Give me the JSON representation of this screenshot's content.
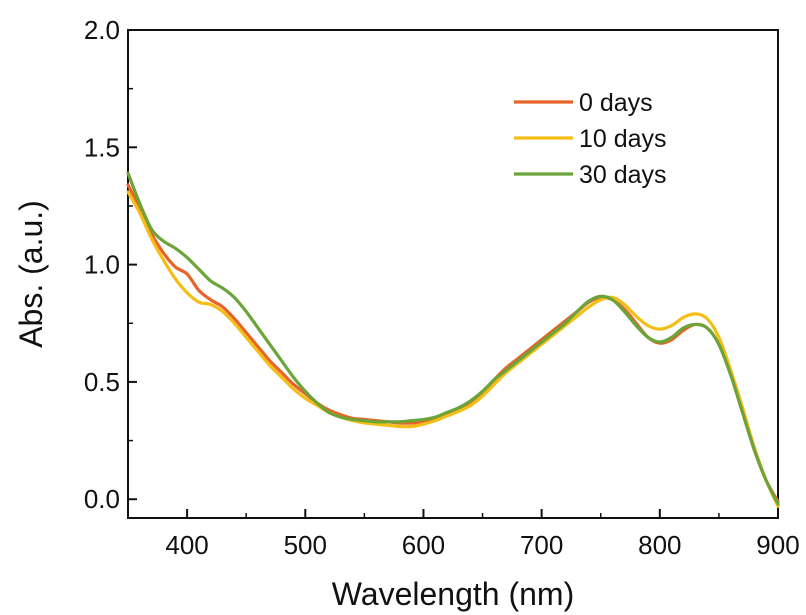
{
  "chart_data": {
    "type": "line",
    "title": "",
    "xlabel": "Wavelength (nm)",
    "ylabel": "Abs. (a.u.)",
    "xlim": [
      350,
      900
    ],
    "ylim": [
      -0.08,
      2.0
    ],
    "xticks": [
      400,
      500,
      600,
      700,
      800,
      900
    ],
    "xtick_labels": [
      "400",
      "500",
      "600",
      "700",
      "800",
      "900"
    ],
    "yticks": [
      0.0,
      0.5,
      1.0,
      1.5,
      2.0
    ],
    "ytick_labels": [
      "0.0",
      "0.5",
      "1.0",
      "1.5",
      "2.0"
    ],
    "grid": false,
    "legend_position": "top-right",
    "series": [
      {
        "name": "0 days",
        "color": "#E8632A",
        "points": [
          [
            350,
            1.34
          ],
          [
            360,
            1.24
          ],
          [
            370,
            1.13
          ],
          [
            380,
            1.05
          ],
          [
            390,
            0.99
          ],
          [
            400,
            0.96
          ],
          [
            410,
            0.89
          ],
          [
            420,
            0.85
          ],
          [
            430,
            0.82
          ],
          [
            440,
            0.77
          ],
          [
            450,
            0.71
          ],
          [
            460,
            0.65
          ],
          [
            470,
            0.59
          ],
          [
            480,
            0.54
          ],
          [
            490,
            0.49
          ],
          [
            500,
            0.45
          ],
          [
            510,
            0.41
          ],
          [
            520,
            0.38
          ],
          [
            530,
            0.36
          ],
          [
            540,
            0.345
          ],
          [
            550,
            0.34
          ],
          [
            560,
            0.335
          ],
          [
            570,
            0.33
          ],
          [
            580,
            0.325
          ],
          [
            590,
            0.325
          ],
          [
            600,
            0.33
          ],
          [
            610,
            0.345
          ],
          [
            620,
            0.365
          ],
          [
            630,
            0.385
          ],
          [
            640,
            0.41
          ],
          [
            650,
            0.45
          ],
          [
            660,
            0.51
          ],
          [
            670,
            0.56
          ],
          [
            680,
            0.6
          ],
          [
            690,
            0.64
          ],
          [
            700,
            0.68
          ],
          [
            710,
            0.72
          ],
          [
            720,
            0.76
          ],
          [
            730,
            0.8
          ],
          [
            740,
            0.84
          ],
          [
            750,
            0.86
          ],
          [
            760,
            0.85
          ],
          [
            770,
            0.81
          ],
          [
            780,
            0.75
          ],
          [
            790,
            0.69
          ],
          [
            800,
            0.665
          ],
          [
            810,
            0.68
          ],
          [
            820,
            0.72
          ],
          [
            830,
            0.745
          ],
          [
            840,
            0.73
          ],
          [
            850,
            0.66
          ],
          [
            860,
            0.53
          ],
          [
            870,
            0.37
          ],
          [
            880,
            0.21
          ],
          [
            890,
            0.08
          ],
          [
            900,
            -0.01
          ]
        ]
      },
      {
        "name": "10 days",
        "color": "#F5BE16",
        "points": [
          [
            350,
            1.31
          ],
          [
            360,
            1.22
          ],
          [
            370,
            1.11
          ],
          [
            380,
            1.02
          ],
          [
            390,
            0.94
          ],
          [
            400,
            0.88
          ],
          [
            410,
            0.84
          ],
          [
            420,
            0.83
          ],
          [
            430,
            0.8
          ],
          [
            440,
            0.75
          ],
          [
            450,
            0.69
          ],
          [
            460,
            0.63
          ],
          [
            470,
            0.57
          ],
          [
            480,
            0.52
          ],
          [
            490,
            0.47
          ],
          [
            500,
            0.43
          ],
          [
            510,
            0.4
          ],
          [
            520,
            0.37
          ],
          [
            530,
            0.35
          ],
          [
            540,
            0.335
          ],
          [
            550,
            0.325
          ],
          [
            560,
            0.32
          ],
          [
            570,
            0.315
          ],
          [
            580,
            0.31
          ],
          [
            590,
            0.31
          ],
          [
            600,
            0.32
          ],
          [
            610,
            0.335
          ],
          [
            620,
            0.355
          ],
          [
            630,
            0.375
          ],
          [
            640,
            0.4
          ],
          [
            650,
            0.44
          ],
          [
            660,
            0.49
          ],
          [
            670,
            0.54
          ],
          [
            680,
            0.58
          ],
          [
            690,
            0.62
          ],
          [
            700,
            0.66
          ],
          [
            710,
            0.7
          ],
          [
            720,
            0.74
          ],
          [
            730,
            0.78
          ],
          [
            740,
            0.82
          ],
          [
            750,
            0.85
          ],
          [
            760,
            0.86
          ],
          [
            770,
            0.83
          ],
          [
            780,
            0.78
          ],
          [
            790,
            0.74
          ],
          [
            800,
            0.725
          ],
          [
            810,
            0.74
          ],
          [
            820,
            0.775
          ],
          [
            830,
            0.79
          ],
          [
            840,
            0.77
          ],
          [
            850,
            0.69
          ],
          [
            860,
            0.55
          ],
          [
            870,
            0.39
          ],
          [
            880,
            0.22
          ],
          [
            890,
            0.08
          ],
          [
            900,
            -0.03
          ]
        ]
      },
      {
        "name": "30 days",
        "color": "#6BA539",
        "points": [
          [
            350,
            1.39
          ],
          [
            360,
            1.26
          ],
          [
            370,
            1.15
          ],
          [
            380,
            1.1
          ],
          [
            390,
            1.07
          ],
          [
            400,
            1.03
          ],
          [
            410,
            0.98
          ],
          [
            420,
            0.93
          ],
          [
            430,
            0.9
          ],
          [
            440,
            0.86
          ],
          [
            450,
            0.8
          ],
          [
            460,
            0.73
          ],
          [
            470,
            0.66
          ],
          [
            480,
            0.59
          ],
          [
            490,
            0.52
          ],
          [
            500,
            0.46
          ],
          [
            510,
            0.41
          ],
          [
            520,
            0.37
          ],
          [
            530,
            0.35
          ],
          [
            540,
            0.34
          ],
          [
            550,
            0.335
          ],
          [
            560,
            0.33
          ],
          [
            570,
            0.33
          ],
          [
            580,
            0.33
          ],
          [
            590,
            0.335
          ],
          [
            600,
            0.34
          ],
          [
            610,
            0.35
          ],
          [
            620,
            0.37
          ],
          [
            630,
            0.39
          ],
          [
            640,
            0.42
          ],
          [
            650,
            0.46
          ],
          [
            660,
            0.51
          ],
          [
            670,
            0.55
          ],
          [
            680,
            0.59
          ],
          [
            690,
            0.63
          ],
          [
            700,
            0.67
          ],
          [
            710,
            0.71
          ],
          [
            720,
            0.75
          ],
          [
            730,
            0.8
          ],
          [
            740,
            0.845
          ],
          [
            750,
            0.865
          ],
          [
            760,
            0.85
          ],
          [
            770,
            0.8
          ],
          [
            780,
            0.74
          ],
          [
            790,
            0.69
          ],
          [
            800,
            0.67
          ],
          [
            810,
            0.69
          ],
          [
            820,
            0.73
          ],
          [
            830,
            0.745
          ],
          [
            840,
            0.73
          ],
          [
            850,
            0.66
          ],
          [
            860,
            0.53
          ],
          [
            870,
            0.37
          ],
          [
            880,
            0.21
          ],
          [
            890,
            0.08
          ],
          [
            900,
            -0.02
          ]
        ]
      }
    ]
  }
}
